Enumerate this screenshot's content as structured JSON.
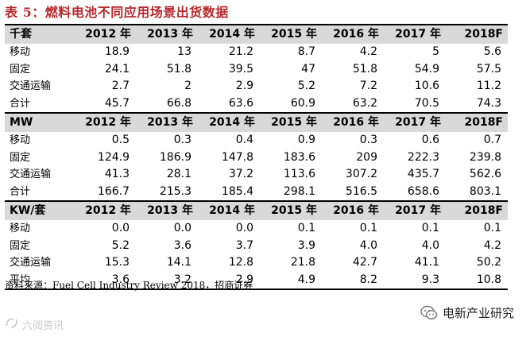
{
  "title": "表 5：燃料电池不同应用场景出货数据",
  "sections": [
    {
      "header": [
        "千套",
        "2012 年",
        "2013 年",
        "2014 年",
        "2015 年",
        "2016 年",
        "2017 年",
        "2018F"
      ],
      "rows": [
        [
          "移动",
          "18.9",
          "13",
          "21.2",
          "8.7",
          "4.2",
          "5",
          "5.6"
        ],
        [
          "固定",
          "24.1",
          "51.8",
          "39.5",
          "47",
          "51.8",
          "54.9",
          "57.5"
        ],
        [
          "交通运输",
          "2.7",
          "2",
          "2.9",
          "5.2",
          "7.2",
          "10.6",
          "11.2"
        ],
        [
          "合计",
          "45.7",
          "66.8",
          "63.6",
          "60.9",
          "63.2",
          "70.5",
          "74.3"
        ]
      ]
    },
    {
      "header": [
        "MW",
        "2012 年",
        "2013 年",
        "2014 年",
        "2015 年",
        "2016 年",
        "2017 年",
        "2018F"
      ],
      "rows": [
        [
          "移动",
          "0.5",
          "0.3",
          "0.4",
          "0.9",
          "0.3",
          "0.6",
          "0.7"
        ],
        [
          "固定",
          "124.9",
          "186.9",
          "147.8",
          "183.6",
          "209",
          "222.3",
          "239.8"
        ],
        [
          "交通运输",
          "41.3",
          "28.1",
          "37.2",
          "113.6",
          "307.2",
          "435.7",
          "562.6"
        ],
        [
          "合计",
          "166.7",
          "215.3",
          "185.4",
          "298.1",
          "516.5",
          "658.6",
          "803.1"
        ]
      ]
    },
    {
      "header": [
        "KW/套",
        "2012 年",
        "2013 年",
        "2014 年",
        "2015 年",
        "2016 年",
        "2017 年",
        "2018F"
      ],
      "rows": [
        [
          "移动",
          "0.0",
          "0.0",
          "0.0",
          "0.1",
          "0.1",
          "0.1",
          "0.1"
        ],
        [
          "固定",
          "5.2",
          "3.6",
          "3.7",
          "3.9",
          "4.0",
          "4.0",
          "4.2"
        ],
        [
          "交通运输",
          "15.3",
          "14.1",
          "12.8",
          "21.8",
          "42.7",
          "41.1",
          "50.2"
        ],
        [
          "平均",
          "3.6",
          "3.2",
          "2.9",
          "4.9",
          "8.2",
          "9.3",
          "10.8"
        ]
      ]
    }
  ],
  "source": "资料来源：Fuel Cell Industry Review 2018，招商证券",
  "watermark_right": "电新产业研究",
  "watermark_left": "六阅资讯",
  "colors": {
    "title": "#b8282d",
    "header_bg": "#d9d9d9"
  },
  "icons": {
    "watermark_right": "wechat-icon",
    "watermark_left": "logo-mark-icon"
  }
}
